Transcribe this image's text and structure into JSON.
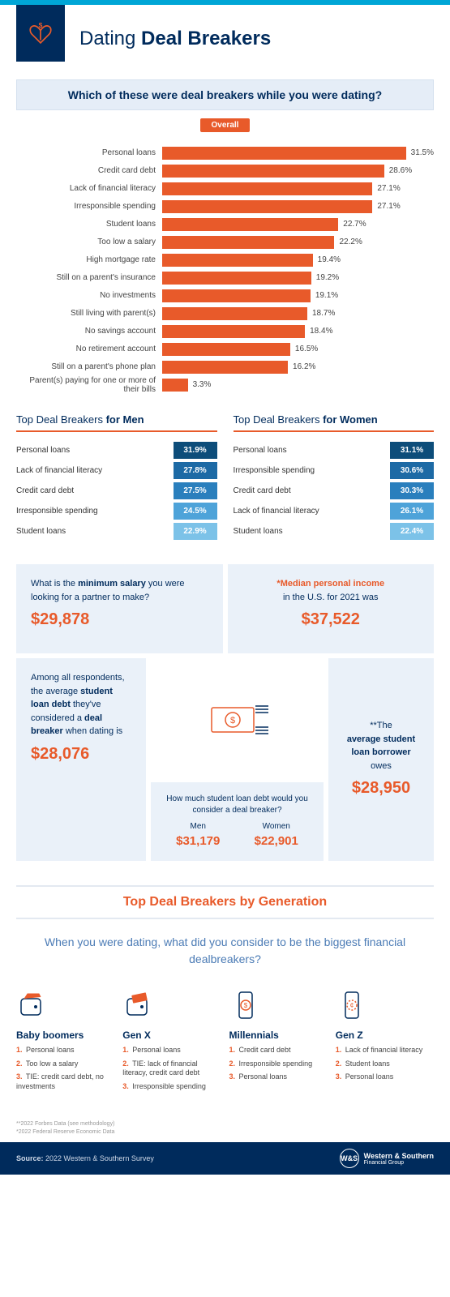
{
  "header": {
    "title_light": "Dating",
    "title_bold": "Deal Breakers"
  },
  "question": "Which of these were deal breakers while you were dating?",
  "overall_label": "Overall",
  "bar_chart": {
    "bar_color": "#e85a2a",
    "xmax": 35,
    "items": [
      {
        "label": "Personal loans",
        "value": 31.5,
        "display": "31.5%"
      },
      {
        "label": "Credit card debt",
        "value": 28.6,
        "display": "28.6%"
      },
      {
        "label": "Lack of financial literacy",
        "value": 27.1,
        "display": "27.1%"
      },
      {
        "label": "Irresponsible spending",
        "value": 27.1,
        "display": "27.1%"
      },
      {
        "label": "Student loans",
        "value": 22.7,
        "display": "22.7%"
      },
      {
        "label": "Too low a salary",
        "value": 22.2,
        "display": "22.2%"
      },
      {
        "label": "High mortgage rate",
        "value": 19.4,
        "display": "19.4%"
      },
      {
        "label": "Still on a parent's insurance",
        "value": 19.2,
        "display": "19.2%"
      },
      {
        "label": "No investments",
        "value": 19.1,
        "display": "19.1%"
      },
      {
        "label": "Still living with parent(s)",
        "value": 18.7,
        "display": "18.7%"
      },
      {
        "label": "No savings account",
        "value": 18.4,
        "display": "18.4%"
      },
      {
        "label": "No retirement account",
        "value": 16.5,
        "display": "16.5%"
      },
      {
        "label": "Still on a parent's phone plan",
        "value": 16.2,
        "display": "16.2%"
      },
      {
        "label": "Parent(s) paying for one or more of their bills",
        "value": 3.3,
        "display": "3.3%"
      }
    ]
  },
  "men": {
    "title_light": "Top Deal Breakers",
    "title_bold": "for Men",
    "shades": [
      "#0d4d7a",
      "#1d6aa5",
      "#2a7fbd",
      "#4ea3d9",
      "#7cc2e8"
    ],
    "items": [
      {
        "label": "Personal loans",
        "value": "31.9%"
      },
      {
        "label": "Lack of financial literacy",
        "value": "27.8%"
      },
      {
        "label": "Credit card debt",
        "value": "27.5%"
      },
      {
        "label": "Irresponsible spending",
        "value": "24.5%"
      },
      {
        "label": "Student loans",
        "value": "22.9%"
      }
    ]
  },
  "women": {
    "title_light": "Top Deal Breakers",
    "title_bold": "for Women",
    "shades": [
      "#0d4d7a",
      "#1d6aa5",
      "#2a7fbd",
      "#4ea3d9",
      "#7cc2e8"
    ],
    "items": [
      {
        "label": "Personal loans",
        "value": "31.1%"
      },
      {
        "label": "Irresponsible spending",
        "value": "30.6%"
      },
      {
        "label": "Credit card debt",
        "value": "30.3%"
      },
      {
        "label": "Lack of financial literacy",
        "value": "26.1%"
      },
      {
        "label": "Student loans",
        "value": "22.4%"
      }
    ]
  },
  "stats": {
    "min_salary": {
      "text_a": "What is the ",
      "text_b": "minimum salary",
      "text_c": " you were looking for a partner to make?",
      "amount": "$29,878"
    },
    "median_income": {
      "text_a": "*Median personal income",
      "text_b": " in the U.S. for 2021 was",
      "amount": "$37,522"
    },
    "avg_debt": {
      "text_a": "Among all respondents, the average ",
      "text_b": "student loan debt",
      "text_c": " they've considered a ",
      "text_d": "deal breaker",
      "text_e": " when dating is",
      "amount": "$28,076"
    },
    "mid": {
      "q": "How much student loan debt would you consider a deal breaker?",
      "men_label": "Men",
      "men_amount": "$31,179",
      "women_label": "Women",
      "women_amount": "$22,901"
    },
    "borrower": {
      "text_a": "**The ",
      "text_b": "average student loan borrower",
      "text_c": " owes",
      "amount": "$28,950"
    }
  },
  "generation": {
    "title": "Top Deal Breakers by Generation",
    "question": "When you were dating, what did you consider to be the biggest financial dealbreakers?",
    "cols": [
      {
        "name": "Baby boomers",
        "items": [
          "Personal loans",
          "Too low a salary",
          "TIE: credit card debt, no investments"
        ]
      },
      {
        "name": "Gen X",
        "items": [
          "Personal loans",
          "TIE: lack of financial literacy, credit card debt",
          "Irresponsible spending"
        ]
      },
      {
        "name": "Millennials",
        "items": [
          "Credit card debt",
          "Irresponsible spending",
          "Personal loans"
        ]
      },
      {
        "name": "Gen Z",
        "items": [
          "Lack of financial literacy",
          "Student loans",
          "Personal loans"
        ]
      }
    ]
  },
  "footnotes": {
    "a": "**2022 Forbes Data (see methodology)",
    "b": "*2022 Federal Reserve Economic Data"
  },
  "footer": {
    "source_label": "Source:",
    "source_text": " 2022 Western & Southern Survey",
    "company": "Western & Southern",
    "company_sub": "Financial Group",
    "logo_text": "W&S"
  }
}
